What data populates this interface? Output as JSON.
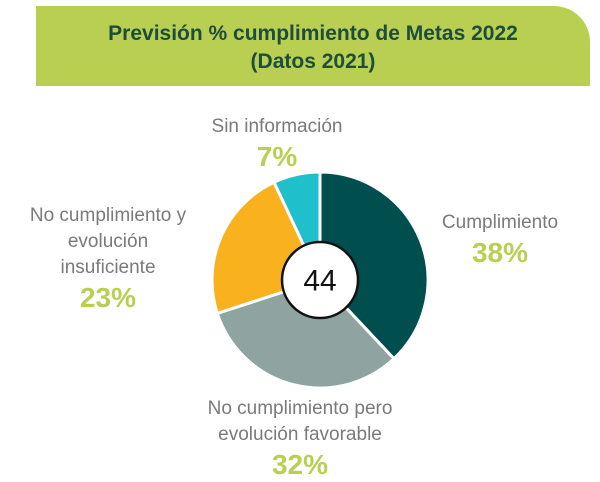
{
  "chart_data": {
    "type": "pie",
    "title": "Previsión % cumplimiento de Metas 2022",
    "subtitle": "(Datos 2021)",
    "center_label": "44",
    "categories": [
      "Cumplimiento",
      "No cumplimiento pero evolución favorable",
      "No cumplimiento y evolución insuficiente",
      "Sin información"
    ],
    "values": [
      38,
      32,
      23,
      7
    ],
    "value_labels": [
      "38%",
      "32%",
      "23%",
      "7%"
    ],
    "colors": [
      "#004f4e",
      "#8fa4a1",
      "#f9b21d",
      "#1fc0cb"
    ]
  }
}
